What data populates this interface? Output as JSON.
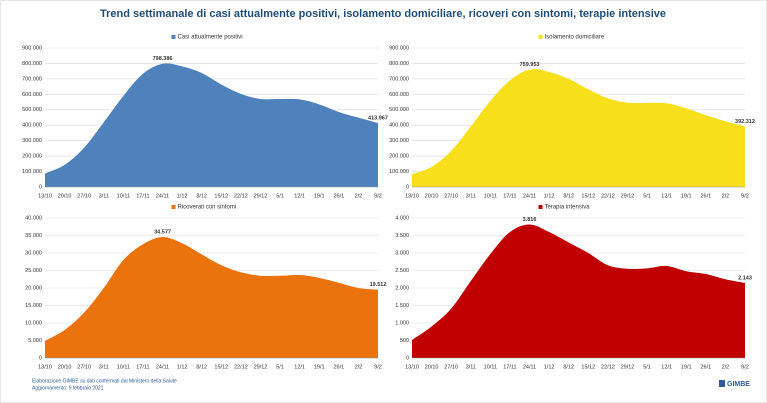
{
  "title": "Trend settimanale di casi attualmente positivi, isolamento domiciliare, ricoveri con sintomi, terapie intensive",
  "footer": {
    "source": "Elaborazione GIMBE su dati confermati dal Ministero della Salute",
    "updated": "Aggiornamento: 9 febbraio 2021",
    "logo": "GIMBE"
  },
  "chart_data": [
    {
      "type": "area",
      "categories": [
        "13/10",
        "20/10",
        "27/10",
        "3/11",
        "10/11",
        "17/11",
        "24/11",
        "1/12",
        "8/12",
        "15/12",
        "22/12",
        "29/12",
        "5/1",
        "12/1",
        "19/1",
        "26/1",
        "2/2",
        "9/2"
      ],
      "series": [
        {
          "name": "Casi attualmente positivi",
          "color": "#4f81bd",
          "values": [
            87000,
            143000,
            255000,
            419000,
            590000,
            733000,
            798386,
            781000,
            738000,
            664000,
            603000,
            570000,
            570000,
            567000,
            535000,
            486000,
            449000,
            413967
          ],
          "value_labels": [
            null,
            null,
            null,
            null,
            null,
            null,
            "798.386",
            null,
            null,
            null,
            null,
            null,
            null,
            null,
            null,
            null,
            null,
            "413.967"
          ]
        }
      ],
      "ylim": [
        0,
        900000
      ],
      "yticks": [
        0,
        {
          "value": 100000,
          "label": "100.000"
        },
        {
          "value": 200000,
          "label": "200.000"
        },
        {
          "value": 300000,
          "label": "300.000"
        },
        {
          "value": 400000,
          "label": "400.000"
        },
        {
          "value": 500000,
          "label": "500.000"
        },
        {
          "value": 600000,
          "label": "600.000"
        },
        {
          "value": 700000,
          "label": "700.000"
        },
        {
          "value": 800000,
          "label": "800.000"
        },
        {
          "value": 900000,
          "label": "900.000"
        }
      ],
      "grid": true
    },
    {
      "type": "area",
      "categories": [
        "13/10",
        "20/10",
        "27/10",
        "3/11",
        "10/11",
        "17/11",
        "24/11",
        "1/12",
        "8/12",
        "15/12",
        "22/12",
        "29/12",
        "5/1",
        "12/1",
        "19/1",
        "26/1",
        "2/2",
        "9/2"
      ],
      "series": [
        {
          "name": "Isolamento domiciliare",
          "color": "#f7e01b",
          "values": [
            82000,
            130000,
            233000,
            392000,
            558000,
            690000,
            759953,
            745000,
            700000,
            633000,
            575000,
            546000,
            545000,
            542000,
            510000,
            465000,
            426000,
            392312
          ],
          "value_labels": [
            null,
            null,
            null,
            null,
            null,
            null,
            "759.953",
            null,
            null,
            null,
            null,
            null,
            null,
            null,
            null,
            null,
            null,
            "392.312"
          ]
        }
      ],
      "ylim": [
        0,
        900000
      ],
      "yticks": [
        0,
        {
          "value": 100000,
          "label": "100.000"
        },
        {
          "value": 200000,
          "label": "200.000"
        },
        {
          "value": 300000,
          "label": "300.000"
        },
        {
          "value": 400000,
          "label": "400.000"
        },
        {
          "value": 500000,
          "label": "500.000"
        },
        {
          "value": 600000,
          "label": "600.000"
        },
        {
          "value": 700000,
          "label": "700.000"
        },
        {
          "value": 800000,
          "label": "800.000"
        },
        {
          "value": 900000,
          "label": "900.000"
        }
      ],
      "grid": true
    },
    {
      "type": "area",
      "categories": [
        "13/10",
        "20/10",
        "27/10",
        "3/11",
        "10/11",
        "17/11",
        "24/11",
        "1/12",
        "8/12",
        "15/12",
        "22/12",
        "29/12",
        "5/1",
        "12/1",
        "19/1",
        "26/1",
        "2/2",
        "9/2"
      ],
      "series": [
        {
          "name": "Ricoverati con sintomi",
          "color": "#ea730e",
          "values": [
            4900,
            8000,
            13000,
            20000,
            28000,
            32500,
            34577,
            32800,
            29600,
            26500,
            24500,
            23500,
            23500,
            23700,
            22900,
            21500,
            20000,
            19512
          ],
          "value_labels": [
            null,
            null,
            null,
            null,
            null,
            null,
            "34.577",
            null,
            null,
            null,
            null,
            null,
            null,
            null,
            null,
            null,
            null,
            "19.512"
          ]
        }
      ],
      "ylim": [
        0,
        40000
      ],
      "yticks": [
        0,
        {
          "value": 5000,
          "label": "5.000"
        },
        {
          "value": 10000,
          "label": "10.000"
        },
        {
          "value": 15000,
          "label": "15.000"
        },
        {
          "value": 20000,
          "label": "20.000"
        },
        {
          "value": 25000,
          "label": "25.000"
        },
        {
          "value": 30000,
          "label": "30.000"
        },
        {
          "value": 35000,
          "label": "35.000"
        },
        {
          "value": 40000,
          "label": "40.000"
        }
      ],
      "grid": true
    },
    {
      "type": "area",
      "categories": [
        "13/10",
        "20/10",
        "27/10",
        "3/11",
        "10/11",
        "17/11",
        "24/11",
        "1/12",
        "8/12",
        "15/12",
        "22/12",
        "29/12",
        "5/1",
        "12/1",
        "19/1",
        "26/1",
        "2/2",
        "9/2"
      ],
      "series": [
        {
          "name": "Terapia intensiva",
          "color": "#c00000",
          "values": [
            514,
            900,
            1410,
            2200,
            2971,
            3600,
            3816,
            3600,
            3300,
            3000,
            2650,
            2550,
            2560,
            2630,
            2480,
            2400,
            2250,
            2143
          ],
          "value_labels": [
            null,
            null,
            null,
            null,
            null,
            null,
            "3.816",
            null,
            null,
            null,
            null,
            null,
            null,
            null,
            null,
            null,
            null,
            "2.143"
          ]
        }
      ],
      "ylim": [
        0,
        4000
      ],
      "yticks": [
        0,
        500,
        {
          "value": 1000,
          "label": "1.000"
        },
        {
          "value": 1500,
          "label": "1.500"
        },
        {
          "value": 2000,
          "label": "2.000"
        },
        {
          "value": 2500,
          "label": "2.500"
        },
        {
          "value": 3000,
          "label": "3.000"
        },
        {
          "value": 3500,
          "label": "3.500"
        },
        {
          "value": 4000,
          "label": "4.000"
        }
      ],
      "grid": true
    }
  ]
}
